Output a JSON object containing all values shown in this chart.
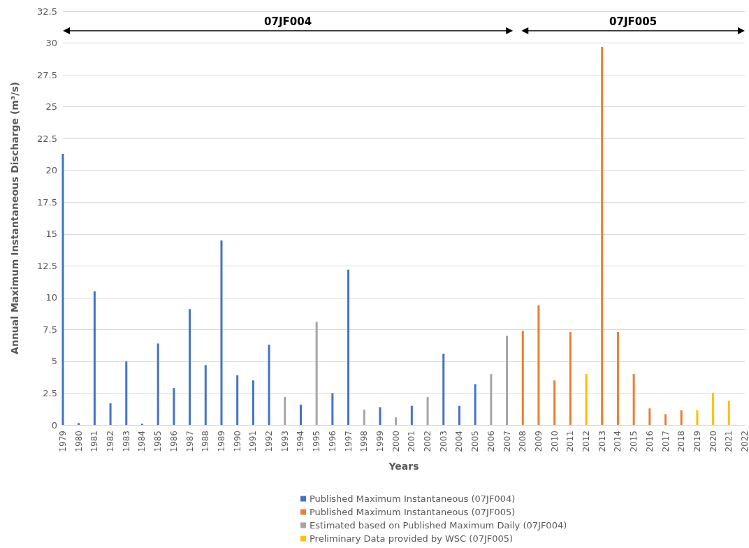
{
  "chart_data": {
    "type": "bar",
    "stacked": true,
    "xlabel": "Years",
    "ylabel": "Annual Maximum Instantaneous Discharge (m³/s)",
    "categories": [
      "1979",
      "1980",
      "1981",
      "1982",
      "1983",
      "1984",
      "1985",
      "1986",
      "1987",
      "1988",
      "1989",
      "1990",
      "1991",
      "1992",
      "1993",
      "1994",
      "1995",
      "1996",
      "1997",
      "1998",
      "1999",
      "2000",
      "2001",
      "2002",
      "2003",
      "2004",
      "2005",
      "2006",
      "2007",
      "2008",
      "2009",
      "2010",
      "2011",
      "2012",
      "2013",
      "2014",
      "2015",
      "2016",
      "2017",
      "2018",
      "2019",
      "2020",
      "2021",
      "2022"
    ],
    "series": [
      {
        "name": "Published Maximum Instantaneous (07JF004)",
        "color": "#4472c4",
        "values": [
          21.3,
          0.15,
          10.5,
          1.7,
          5.0,
          0.1,
          6.4,
          2.9,
          9.1,
          4.7,
          14.5,
          3.9,
          3.5,
          6.3,
          null,
          1.6,
          null,
          2.5,
          12.2,
          null,
          1.4,
          null,
          1.5,
          null,
          5.6,
          1.5,
          3.2,
          null,
          null,
          null,
          null,
          null,
          null,
          null,
          null,
          null,
          null,
          null,
          null,
          null,
          null,
          null,
          null,
          null
        ]
      },
      {
        "name": "Published Maximum Instantaneous (07JF005)",
        "color": "#ed7d31",
        "values": [
          null,
          null,
          null,
          null,
          null,
          null,
          null,
          null,
          null,
          null,
          null,
          null,
          null,
          null,
          null,
          null,
          null,
          null,
          null,
          null,
          null,
          null,
          null,
          null,
          null,
          null,
          null,
          null,
          null,
          7.4,
          9.4,
          3.5,
          7.3,
          null,
          29.7,
          7.3,
          4.0,
          1.3,
          0.85,
          1.15,
          null,
          null,
          null,
          null
        ]
      },
      {
        "name": "Estimated based on Published Maximum Daily (07JF004)",
        "color": "#a5a5a5",
        "values": [
          null,
          null,
          null,
          null,
          null,
          null,
          null,
          null,
          null,
          null,
          null,
          null,
          null,
          null,
          2.2,
          null,
          8.1,
          null,
          null,
          1.2,
          null,
          0.6,
          null,
          2.2,
          null,
          null,
          null,
          4.0,
          7.0,
          null,
          null,
          null,
          null,
          null,
          null,
          null,
          null,
          null,
          null,
          null,
          null,
          null,
          null,
          null
        ]
      },
      {
        "name": "Preliminary Data provided by WSC (07JF005)",
        "color": "#ffc000",
        "values": [
          null,
          null,
          null,
          null,
          null,
          null,
          null,
          null,
          null,
          null,
          null,
          null,
          null,
          null,
          null,
          null,
          null,
          null,
          null,
          null,
          null,
          null,
          null,
          null,
          null,
          null,
          null,
          null,
          null,
          null,
          null,
          null,
          null,
          4.0,
          null,
          null,
          null,
          null,
          null,
          null,
          1.15,
          2.5,
          1.9,
          null
        ]
      }
    ],
    "ylim": [
      0,
      32.5
    ],
    "yticks": [
      0,
      2.5,
      5,
      7.5,
      10,
      12.5,
      15,
      17.5,
      20,
      22.5,
      25,
      27.5,
      30,
      32.5
    ],
    "grid": "y",
    "legend": "bottom",
    "annotations": [
      "07JF004",
      "07JF005"
    ]
  }
}
